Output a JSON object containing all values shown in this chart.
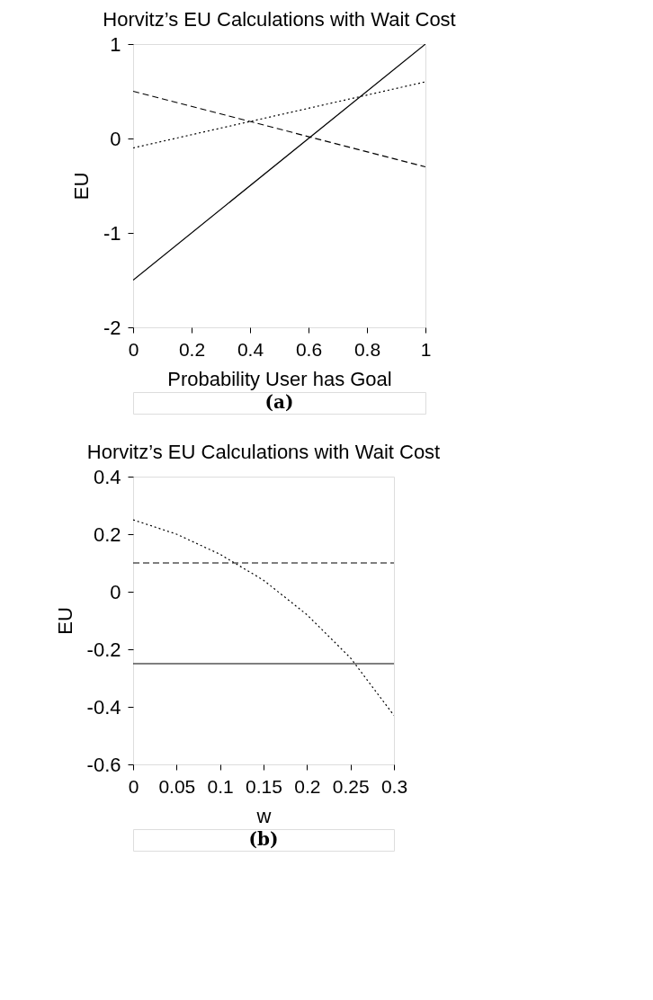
{
  "chart_data": [
    {
      "type": "line",
      "title": "Horvitz’s EU Calculations with Wait Cost",
      "xlabel": "Probability User has Goal",
      "ylabel": "EU",
      "annotations": [
        "(a)"
      ],
      "series": [
        {
          "color": "#000000",
          "line_style": "solid",
          "x": [
            0,
            1
          ],
          "values": [
            -1.5,
            1
          ]
        },
        {
          "color": "#000000",
          "line_style": "dashed",
          "x": [
            0,
            1
          ],
          "values": [
            0.5,
            -0.3
          ]
        },
        {
          "color": "#000000",
          "line_style": "dotted",
          "x": [
            0,
            1
          ],
          "values": [
            -0.1,
            0.6
          ]
        }
      ],
      "xlim": [
        0,
        1
      ],
      "ylim": [
        -2,
        1
      ],
      "xticks": [
        0,
        0.2,
        0.4,
        0.6,
        0.8,
        1
      ],
      "yticks": [
        -2,
        -1,
        0,
        1
      ],
      "grid": false
    },
    {
      "type": "line",
      "title": "Horvitz’s EU Calculations with Wait Cost",
      "xlabel": "w",
      "ylabel": "EU",
      "annotations": [
        "(b)"
      ],
      "series": [
        {
          "color": "#000000",
          "line_style": "solid",
          "x": [
            0,
            0.3
          ],
          "values": [
            -0.25,
            -0.25
          ]
        },
        {
          "color": "#000000",
          "line_style": "dashed",
          "x": [
            0,
            0.3
          ],
          "values": [
            0.1,
            0.1
          ]
        },
        {
          "color": "#000000",
          "line_style": "dotted",
          "x": [
            0,
            0.05,
            0.1,
            0.15,
            0.2,
            0.25,
            0.3
          ],
          "values": [
            0.25,
            0.2,
            0.13,
            0.04,
            -0.08,
            -0.23,
            -0.43
          ]
        }
      ],
      "xlim": [
        0,
        0.3
      ],
      "ylim": [
        -0.6,
        0.4
      ],
      "xticks": [
        0,
        0.05,
        0.1,
        0.15,
        0.2,
        0.25,
        0.3
      ],
      "yticks": [
        -0.6,
        -0.4,
        -0.2,
        0,
        0.2,
        0.4
      ],
      "grid": false
    }
  ]
}
